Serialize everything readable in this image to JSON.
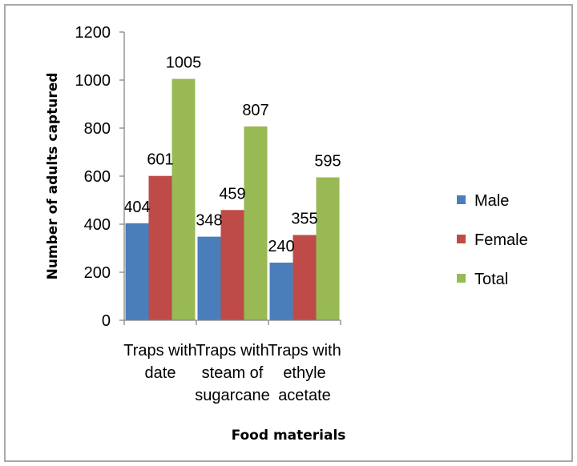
{
  "chart_data": {
    "type": "bar",
    "title": "",
    "xlabel": "Food  materials",
    "ylabel": "Number of adults captured",
    "ylim": [
      0,
      1200
    ],
    "yticks": [
      0,
      200,
      400,
      600,
      800,
      1000,
      1200
    ],
    "categories": [
      [
        "Traps with",
        "date"
      ],
      [
        "Traps with",
        "steam of",
        "sugarcane"
      ],
      [
        "Traps with",
        "ethyle",
        "acetate"
      ]
    ],
    "series": [
      {
        "name": "Male",
        "color": "#4a7ebb",
        "values": [
          404,
          348,
          240
        ]
      },
      {
        "name": "Female",
        "color": "#be4b48",
        "values": [
          601,
          459,
          355
        ]
      },
      {
        "name": "Total",
        "color": "#98b954",
        "values": [
          1005,
          807,
          595
        ]
      }
    ],
    "grid": false,
    "legend": "right",
    "data_labels": true
  }
}
